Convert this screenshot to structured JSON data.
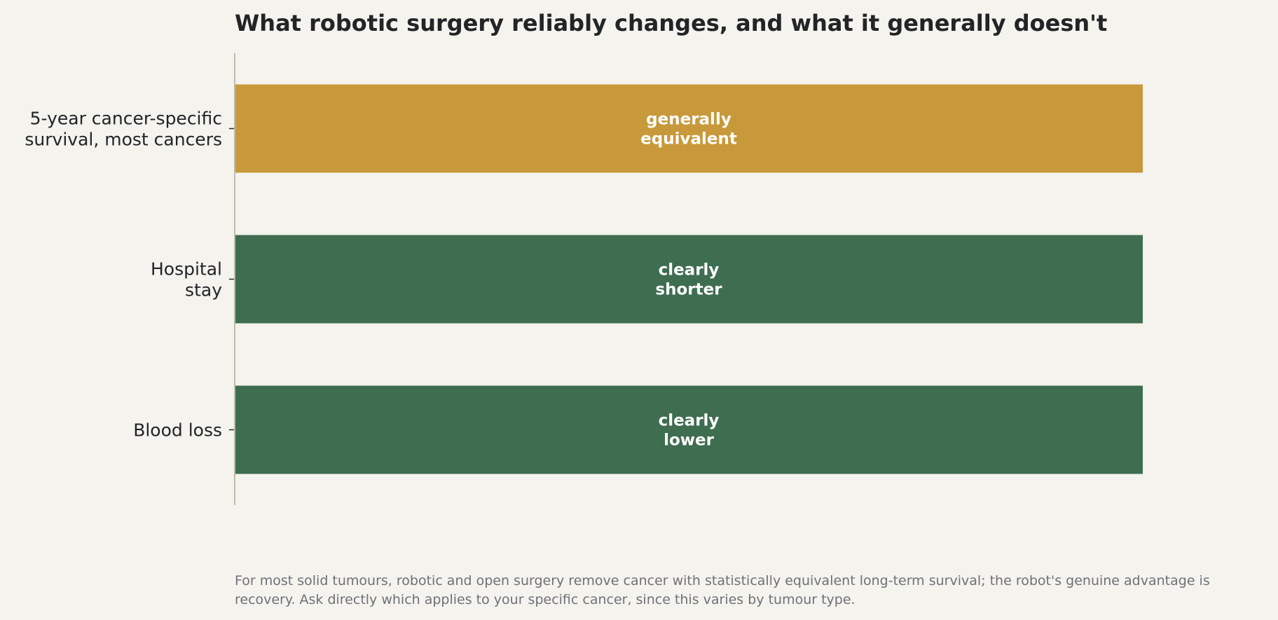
{
  "chart_data": {
    "type": "bar",
    "orientation": "horizontal",
    "title": "What robotic surgery reliably changes, and what it generally doesn't",
    "categories": [
      [
        "5-year cancer-specific",
        "survival, most cancers"
      ],
      [
        "Hospital",
        "stay"
      ],
      [
        "Blood loss"
      ]
    ],
    "values": [
      1,
      1,
      1
    ],
    "bar_labels": [
      [
        "generally",
        "equivalent"
      ],
      [
        "clearly",
        "shorter"
      ],
      [
        "clearly",
        "lower"
      ]
    ],
    "colors": [
      "#c8993a",
      "#3e6d50",
      "#3e6d50"
    ],
    "xlim": [
      0,
      1
    ],
    "grid": false,
    "legend": "none",
    "note": "For most solid tumours, robotic and open surgery remove cancer with statistically equivalent long-term survival; the robot's genuine advantage is recovery. Ask directly which applies to your specific cancer, since this varies by tumour type."
  }
}
